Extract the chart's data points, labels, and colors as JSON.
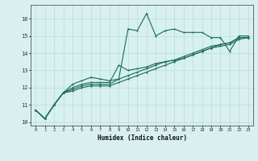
{
  "xlabel": "Humidex (Indice chaleur)",
  "ylabel": "",
  "background_color": "#d8f0f0",
  "grid_color": "#b8dcdc",
  "line_color": "#1a6b5a",
  "xlim": [
    -0.5,
    23.5
  ],
  "ylim": [
    9.8,
    16.8
  ],
  "yticks": [
    10,
    11,
    12,
    13,
    14,
    15,
    16
  ],
  "xticks": [
    0,
    1,
    2,
    3,
    4,
    5,
    6,
    7,
    8,
    9,
    10,
    11,
    12,
    13,
    14,
    15,
    16,
    17,
    18,
    19,
    20,
    21,
    22,
    23
  ],
  "series": [
    [
      10.7,
      10.2,
      11.0,
      11.7,
      12.2,
      12.4,
      12.6,
      12.5,
      12.4,
      12.5,
      15.4,
      15.3,
      16.3,
      15.0,
      15.3,
      15.4,
      15.2,
      15.2,
      15.2,
      14.9,
      14.9,
      14.1,
      15.0,
      15.0
    ],
    [
      10.7,
      10.2,
      11.0,
      11.7,
      12.0,
      12.2,
      12.3,
      12.3,
      12.3,
      13.3,
      13.0,
      13.1,
      13.2,
      13.4,
      13.5,
      13.6,
      13.7,
      13.9,
      14.1,
      14.3,
      14.5,
      14.6,
      14.9,
      14.9
    ],
    [
      10.7,
      10.2,
      11.0,
      11.7,
      11.9,
      12.1,
      12.2,
      12.2,
      12.2,
      12.5,
      12.7,
      12.9,
      13.1,
      13.3,
      13.5,
      13.6,
      13.8,
      14.0,
      14.2,
      14.4,
      14.5,
      14.6,
      14.9,
      14.9
    ],
    [
      10.7,
      10.2,
      11.0,
      11.7,
      11.8,
      12.0,
      12.1,
      12.1,
      12.1,
      12.3,
      12.5,
      12.7,
      12.9,
      13.1,
      13.3,
      13.5,
      13.7,
      13.9,
      14.1,
      14.3,
      14.4,
      14.5,
      14.8,
      14.9
    ]
  ]
}
